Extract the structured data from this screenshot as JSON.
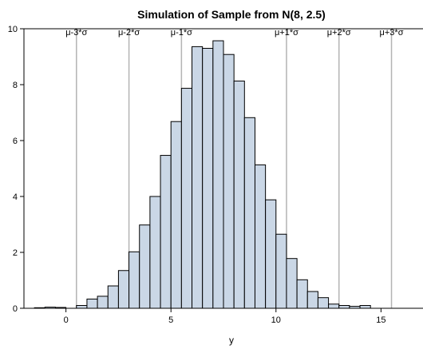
{
  "chart_data": {
    "type": "bar",
    "title": "Simulation of Sample from N(8, 2.5)",
    "xlabel": "y",
    "ylabel": "",
    "xlim": [
      -2,
      17
    ],
    "ylim": [
      0,
      10
    ],
    "x_ticks": [
      0,
      5,
      10,
      15
    ],
    "y_ticks": [
      0,
      2,
      4,
      6,
      8,
      10
    ],
    "bin_width": 0.5,
    "bins": [
      {
        "x": -1.5,
        "value": 0.02
      },
      {
        "x": -1.0,
        "value": 0.04
      },
      {
        "x": -0.5,
        "value": 0.03
      },
      {
        "x": 0.0,
        "value": 0.0
      },
      {
        "x": 0.5,
        "value": 0.1
      },
      {
        "x": 1.0,
        "value": 0.33
      },
      {
        "x": 1.5,
        "value": 0.43
      },
      {
        "x": 2.0,
        "value": 0.8
      },
      {
        "x": 2.5,
        "value": 1.35
      },
      {
        "x": 3.0,
        "value": 2.02
      },
      {
        "x": 3.5,
        "value": 2.98
      },
      {
        "x": 4.0,
        "value": 4.0
      },
      {
        "x": 4.5,
        "value": 5.47
      },
      {
        "x": 5.0,
        "value": 6.68
      },
      {
        "x": 5.5,
        "value": 7.87
      },
      {
        "x": 6.0,
        "value": 9.36
      },
      {
        "x": 6.5,
        "value": 9.3
      },
      {
        "x": 7.0,
        "value": 9.57
      },
      {
        "x": 7.5,
        "value": 9.08
      },
      {
        "x": 8.0,
        "value": 8.13
      },
      {
        "x": 8.5,
        "value": 6.82
      },
      {
        "x": 9.0,
        "value": 5.13
      },
      {
        "x": 9.5,
        "value": 3.88
      },
      {
        "x": 10.0,
        "value": 2.65
      },
      {
        "x": 10.5,
        "value": 1.78
      },
      {
        "x": 11.0,
        "value": 1.02
      },
      {
        "x": 11.5,
        "value": 0.6
      },
      {
        "x": 12.0,
        "value": 0.38
      },
      {
        "x": 12.5,
        "value": 0.15
      },
      {
        "x": 13.0,
        "value": 0.1
      },
      {
        "x": 13.5,
        "value": 0.07
      },
      {
        "x": 14.0,
        "value": 0.1
      }
    ],
    "reference_lines": [
      {
        "x": 0.5,
        "label": "μ-3*σ"
      },
      {
        "x": 3.0,
        "label": "μ-2*σ"
      },
      {
        "x": 5.5,
        "label": "μ-1*σ"
      },
      {
        "x": 10.5,
        "label": "μ+1*σ"
      },
      {
        "x": 13.0,
        "label": "μ+2*σ"
      },
      {
        "x": 15.5,
        "label": "μ+3*σ"
      }
    ],
    "colors": {
      "bar_fill": "#cad7e6",
      "bar_stroke": "#000000",
      "reference_line": "#b4b4b4",
      "frame": "#000000"
    },
    "grid": false,
    "legend": "none"
  }
}
